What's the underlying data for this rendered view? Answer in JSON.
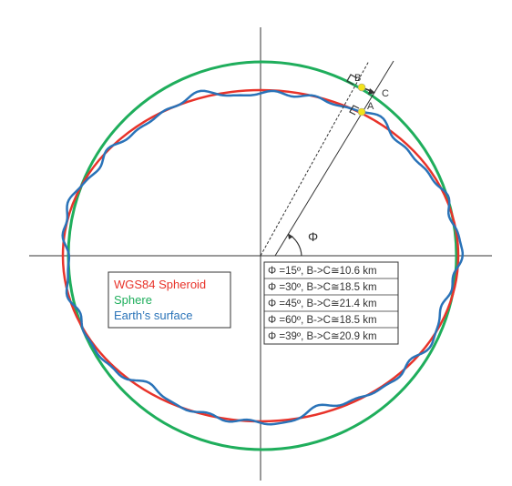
{
  "labels": {
    "point_a": "A",
    "point_b": "B",
    "point_c": "C",
    "angle": "Φ"
  },
  "legend": {
    "items": [
      {
        "label": "WGS84 Spheroid",
        "color": "#e8332a"
      },
      {
        "label": "Sphere",
        "color": "#1fae5c"
      },
      {
        "label": "Earth’s surface",
        "color": "#2a73b8"
      }
    ]
  },
  "table": {
    "rows": [
      "Φ =15º, B->C≅10.6 km",
      "Φ =30º, B->C≅18.5 km",
      "Φ =45º, B->C≅21.4 km",
      "Φ =60º, B->C≅18.5 km",
      "Φ =39º, B->C≅20.9 km"
    ]
  },
  "colors": {
    "spheroid": "#e8332a",
    "sphere": "#1fae5c",
    "surface": "#2a73b8",
    "point_marker": "#f2e21a",
    "lines": "#333333"
  }
}
